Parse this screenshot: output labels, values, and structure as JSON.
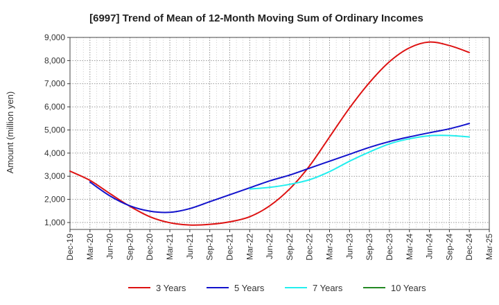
{
  "chart_data": {
    "type": "line",
    "title": "[6997]  Trend of Mean of 12-Month Moving Sum of Ordinary Incomes",
    "xlabel": "",
    "ylabel": "Amount (million yen)",
    "ylim": [
      700,
      9000
    ],
    "yticks": [
      1000,
      2000,
      3000,
      4000,
      5000,
      6000,
      7000,
      8000,
      9000
    ],
    "ytick_labels": [
      "1,000",
      "2,000",
      "3,000",
      "4,000",
      "5,000",
      "6,000",
      "7,000",
      "8,000",
      "9,000"
    ],
    "categories": [
      "Dec-19",
      "Mar-20",
      "Jun-20",
      "Sep-20",
      "Dec-20",
      "Mar-21",
      "Jun-21",
      "Sep-21",
      "Dec-21",
      "Mar-22",
      "Jun-22",
      "Sep-22",
      "Dec-22",
      "Mar-23",
      "Jun-23",
      "Sep-23",
      "Dec-23",
      "Mar-24",
      "Jun-24",
      "Sep-24",
      "Dec-24",
      "Mar-25"
    ],
    "grid": true,
    "legend_position": "bottom",
    "series": [
      {
        "name": "3 Years",
        "color": "#dd1111",
        "values": [
          3220,
          2820,
          2250,
          1700,
          1250,
          990,
          890,
          920,
          1030,
          1250,
          1720,
          2450,
          3450,
          4700,
          5950,
          7050,
          7950,
          8550,
          8800,
          8650,
          8350,
          null
        ]
      },
      {
        "name": "5 Years",
        "color": "#1111cc",
        "values": [
          null,
          2750,
          2150,
          1720,
          1490,
          1440,
          1600,
          1900,
          2200,
          2500,
          2800,
          3050,
          3350,
          3650,
          3950,
          4250,
          4500,
          4700,
          4880,
          5050,
          5280,
          null
        ]
      },
      {
        "name": "7 Years",
        "color": "#22eeee",
        "values": [
          null,
          null,
          null,
          null,
          null,
          null,
          null,
          null,
          null,
          2450,
          2520,
          2650,
          2850,
          3200,
          3650,
          4050,
          4400,
          4620,
          4750,
          4760,
          4700,
          null
        ]
      },
      {
        "name": "10 Years",
        "color": "#228822",
        "values": [
          null,
          null,
          null,
          null,
          null,
          null,
          null,
          null,
          null,
          null,
          null,
          null,
          null,
          null,
          null,
          null,
          null,
          null,
          null,
          null,
          null,
          null
        ]
      }
    ]
  }
}
